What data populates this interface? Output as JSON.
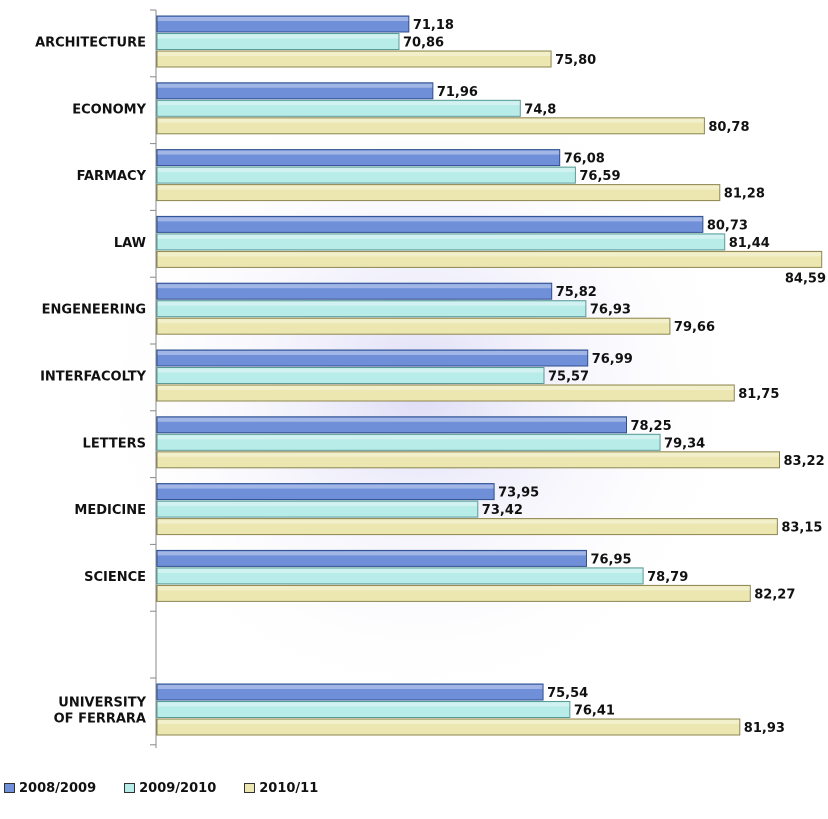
{
  "chart_data": {
    "type": "bar",
    "orientation": "horizontal",
    "categories": [
      "ARCHITECTURE",
      "ECONOMY",
      "FARMACY",
      "LAW",
      "ENGENEERING",
      "INTERFACOLTY",
      "LETTERS",
      "MEDICINE",
      "SCIENCE",
      "",
      "UNIVERSITY OF FERRARA"
    ],
    "category_lines": [
      [
        "ARCHITECTURE"
      ],
      [
        "ECONOMY"
      ],
      [
        "FARMACY"
      ],
      [
        "LAW"
      ],
      [
        "ENGENEERING"
      ],
      [
        "INTERFACOLTY"
      ],
      [
        "LETTERS"
      ],
      [
        "MEDICINE"
      ],
      [
        "SCIENCE"
      ],
      [],
      [
        "UNIVERSITY",
        "OF FERRARA"
      ]
    ],
    "series": [
      {
        "name": "2008/2009",
        "values": [
          71.18,
          71.96,
          76.08,
          80.73,
          75.82,
          76.99,
          78.25,
          73.95,
          76.95,
          null,
          75.54
        ],
        "labels": [
          "71,18",
          "71,96",
          "76,08",
          "80,73",
          "75,82",
          "76,99",
          "78,25",
          "73,95",
          "76,95",
          "",
          "75,54"
        ],
        "color": "#6f8fd8"
      },
      {
        "name": "2009/2010",
        "values": [
          70.86,
          74.8,
          76.59,
          81.44,
          76.93,
          75.57,
          79.34,
          73.42,
          78.79,
          null,
          76.41
        ],
        "labels": [
          "70,86",
          "74,8",
          "76,59",
          "81,44",
          "76,93",
          "75,57",
          "79,34",
          "73,42",
          "78,79",
          "",
          "76,41"
        ],
        "color": "#b8ece8"
      },
      {
        "name": "2010/11",
        "values": [
          75.8,
          80.78,
          81.28,
          84.59,
          79.66,
          81.75,
          83.22,
          83.15,
          82.27,
          null,
          81.93
        ],
        "labels": [
          "75,80",
          "80,78",
          "81,28",
          "84,59",
          "79,66",
          "81,75",
          "83,22",
          "83,15",
          "82,27",
          "",
          "81,93"
        ],
        "color": "#ece6b0"
      }
    ],
    "xlim": [
      63,
      84.6
    ],
    "grid": false,
    "legend_position": "bottom-left",
    "title": "",
    "xlabel": "",
    "ylabel": ""
  },
  "legend": [
    {
      "name": "2008/2009",
      "color": "#6f8fd8"
    },
    {
      "name": "2009/2010",
      "color": "#b8ece8"
    },
    {
      "name": "2010/11",
      "color": "#ece6b0"
    }
  ]
}
